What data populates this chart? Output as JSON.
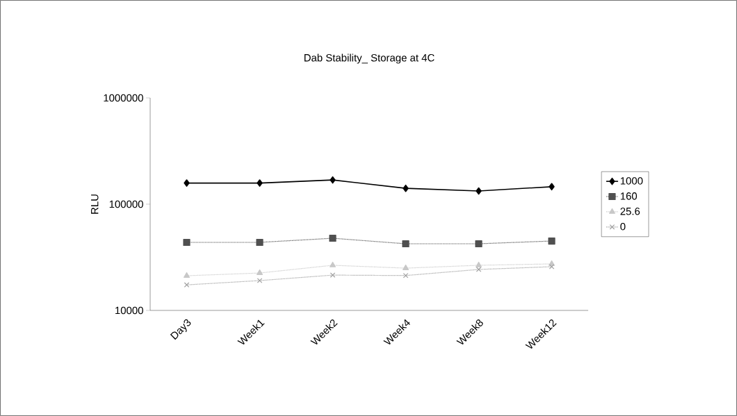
{
  "chart_data": {
    "type": "line",
    "title": "Dab Stability_ Storage at 4C",
    "ylabel": "RLU",
    "categories": [
      "Day3",
      "Week1",
      "Week2",
      "Week4",
      "Week8",
      "Week12"
    ],
    "series": [
      {
        "name": "1000",
        "color": "#000000",
        "marker": "diamond",
        "line_style": "solid",
        "values": [
          158000,
          158000,
          169000,
          141000,
          133000,
          146000
        ]
      },
      {
        "name": "160",
        "color": "#505050",
        "marker": "square",
        "line_style": "dotted",
        "values": [
          43700,
          43700,
          47800,
          42400,
          42400,
          45000
        ]
      },
      {
        "name": "25.6",
        "color": "#c8c8c8",
        "marker": "triangle",
        "line_style": "dotted",
        "values": [
          21200,
          22500,
          26600,
          25000,
          26600,
          27400
        ]
      },
      {
        "name": "0",
        "color": "#a0a0a0",
        "marker": "cross",
        "line_style": "dotted",
        "values": [
          17400,
          19100,
          21500,
          21300,
          24300,
          25800
        ]
      }
    ],
    "log": "y",
    "ylim": [
      10000,
      1000000
    ],
    "yticks": [
      10000,
      100000,
      1000000
    ],
    "grid": false,
    "legend": "right"
  }
}
